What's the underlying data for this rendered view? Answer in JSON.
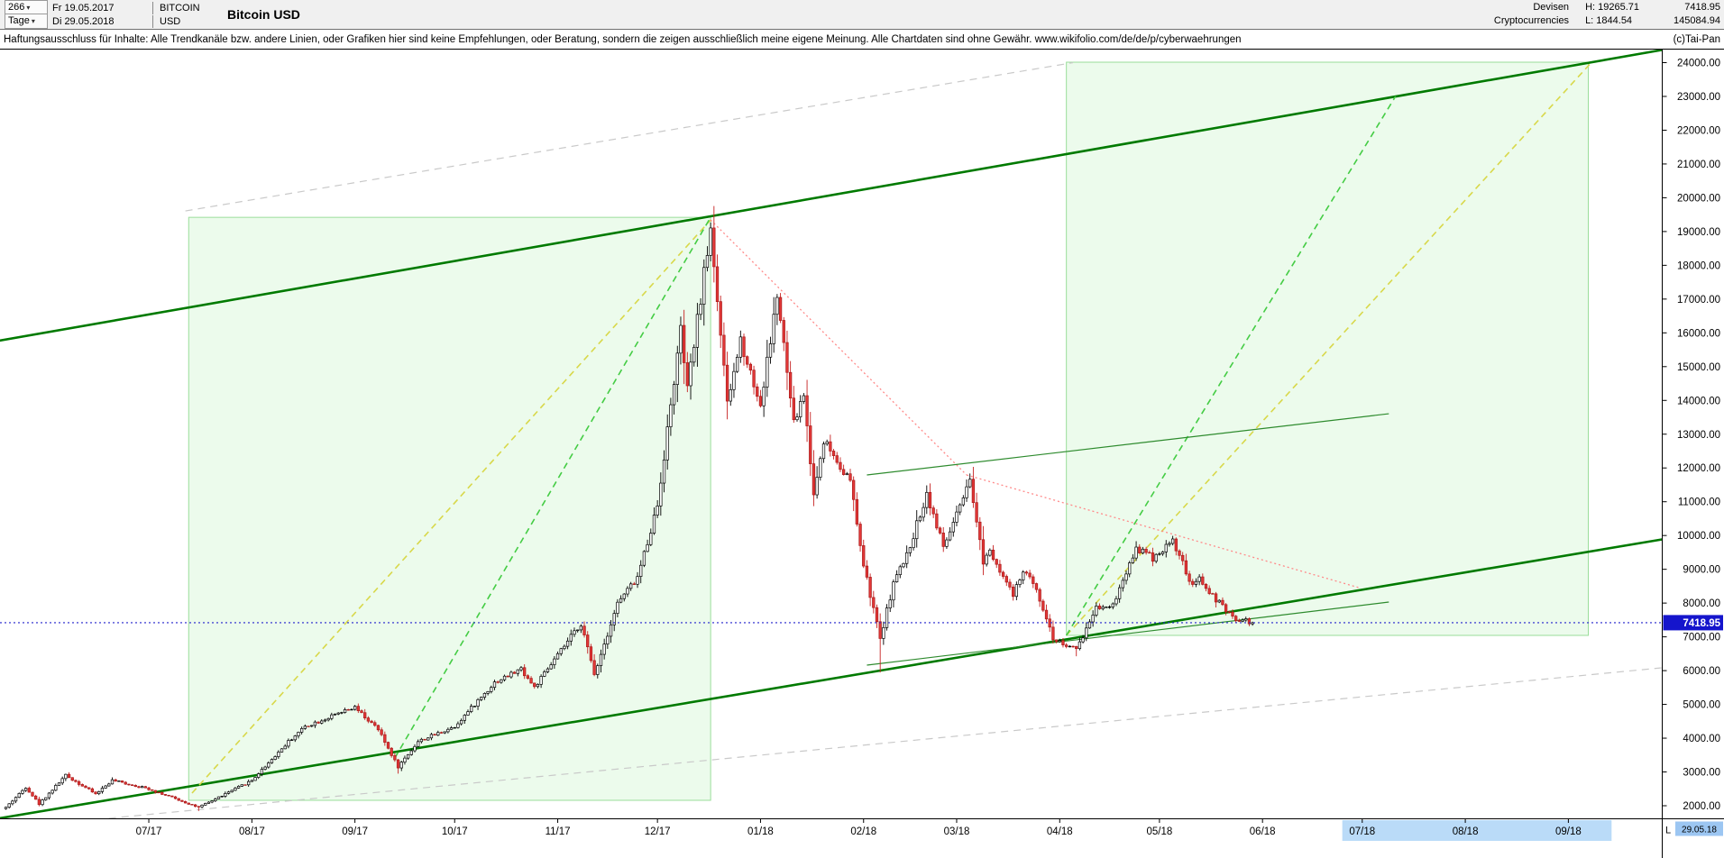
{
  "icons": {
    "dropdown_caret": "▾"
  },
  "window": {
    "bars": "266",
    "timeframe": "Tage",
    "date_from": "Fr 19.05.2017",
    "date_to": "Di 29.05.2018",
    "symbol": "BITCOIN",
    "currency": "USD",
    "title": "Bitcoin USD",
    "category_line1": "Devisen",
    "category_line2": "Cryptocurrencies",
    "high": "H: 19265.71",
    "low": "L: 1844.54",
    "last": "7418.95",
    "volume": "145084.94",
    "copyright": "(c)Tai-Pan"
  },
  "disclaimer": "Haftungsausschluss für Inhalte: Alle Trendkanäle bzw. andere Linien, oder Grafiken hier sind keine Empfehlungen, oder Beratung, sondern die zeigen ausschließlich meine eigene Meinung. Alle Chartdaten sind ohne Gewähr.  www.wikifolio.com/de/de/p/cyberwaehrungen",
  "chart_data": {
    "type": "candlestick",
    "title": "Bitcoin USD",
    "symbol": "BITCOIN",
    "currency": "USD",
    "timeframe": "Tage",
    "bars": 266,
    "range_start": "19.05.2017",
    "range_end": "29.05.2018",
    "period_high": 19265.71,
    "period_low": 1844.54,
    "last_close": 7418.95,
    "volume": 145084.94,
    "grid": false,
    "up_color": "#ffffff",
    "down_color": "#e33838",
    "y_axis": {
      "min": 2000,
      "max": 24000,
      "step": 1000,
      "side": "right",
      "label_format": "2-decimals"
    },
    "ylim": [
      2000,
      24000
    ],
    "x_labels": [
      {
        "label": "07/17",
        "day": 43
      },
      {
        "label": "08/17",
        "day": 74
      },
      {
        "label": "09/17",
        "day": 105
      },
      {
        "label": "10/17",
        "day": 135
      },
      {
        "label": "11/17",
        "day": 166
      },
      {
        "label": "12/17",
        "day": 196
      },
      {
        "label": "01/18",
        "day": 227
      },
      {
        "label": "02/18",
        "day": 258
      },
      {
        "label": "03/18",
        "day": 286
      },
      {
        "label": "04/18",
        "day": 317
      },
      {
        "label": "05/18",
        "day": 347
      },
      {
        "label": "06/18",
        "day": 378
      },
      {
        "label": "07/18",
        "day": 408
      },
      {
        "label": "08/18",
        "day": 439
      },
      {
        "label": "09/18",
        "day": 470
      }
    ],
    "price_path": [
      [
        0,
        1950
      ],
      [
        6,
        2550
      ],
      [
        10,
        2050
      ],
      [
        18,
        2900
      ],
      [
        27,
        2350
      ],
      [
        32,
        2750
      ],
      [
        43,
        2500
      ],
      [
        58,
        1950,
        null,
        1844.54
      ],
      [
        74,
        2750
      ],
      [
        85,
        3900
      ],
      [
        90,
        4350
      ],
      [
        105,
        4900
      ],
      [
        112,
        4250
      ],
      [
        118,
        3150,
        null,
        2950
      ],
      [
        124,
        3900
      ],
      [
        135,
        4350
      ],
      [
        147,
        5650
      ],
      [
        155,
        6050
      ],
      [
        159,
        5500
      ],
      [
        166,
        6450
      ],
      [
        173,
        7400
      ],
      [
        177,
        5900
      ],
      [
        184,
        8000
      ],
      [
        190,
        8750
      ],
      [
        196,
        10900
      ],
      [
        203,
        16050
      ],
      [
        205,
        14300
      ],
      [
        212,
        19100,
        19265.71,
        null
      ],
      [
        217,
        13850
      ],
      [
        221,
        15800
      ],
      [
        227,
        13850
      ],
      [
        232,
        17100
      ],
      [
        237,
        13300
      ],
      [
        240,
        14200
      ],
      [
        243,
        11200
      ],
      [
        246,
        12850
      ],
      [
        254,
        11600
      ],
      [
        258,
        9100
      ],
      [
        263,
        6950,
        null,
        5947
      ],
      [
        267,
        8600
      ],
      [
        271,
        9400
      ],
      [
        277,
        11250
      ],
      [
        282,
        9650
      ],
      [
        290,
        11550
      ],
      [
        294,
        9250
      ],
      [
        296,
        9600
      ],
      [
        303,
        8200
      ],
      [
        306,
        8950
      ],
      [
        310,
        8450
      ],
      [
        315,
        6950
      ],
      [
        322,
        6600,
        null,
        6425
      ],
      [
        328,
        7900
      ],
      [
        333,
        7950
      ],
      [
        340,
        9650
      ],
      [
        345,
        9350
      ],
      [
        351,
        9850,
        9990,
        null
      ],
      [
        357,
        8450
      ],
      [
        359,
        8700
      ],
      [
        364,
        8100
      ],
      [
        369,
        7550
      ],
      [
        375,
        7418.95
      ]
    ],
    "overlays": {
      "regions": [
        {
          "name": "rally-2017-zone",
          "d": [
            55,
            212
          ],
          "p": [
            2160,
            19420
          ],
          "fill": "rgba(150,235,150,0.18)",
          "border": "#9ade9a"
        },
        {
          "name": "projection-2018-zone",
          "d": [
            319,
            476
          ],
          "p": [
            7043,
            24013
          ],
          "fill": "rgba(150,235,150,0.18)",
          "border": "#9ade9a"
        }
      ],
      "lines": [
        {
          "name": "channel-upper-line",
          "pts": [
            [
              -2,
              15770
            ],
            [
              499,
              24390
            ]
          ],
          "color": "#007a00",
          "w": 2.6,
          "dash": ""
        },
        {
          "name": "channel-lower-line",
          "pts": [
            [
              -2,
              1627
            ],
            [
              499,
              9898
            ]
          ],
          "color": "#007a00",
          "w": 2.6,
          "dash": ""
        },
        {
          "name": "rally-yellow-dashed-line",
          "pts": [
            [
              56,
              2374
            ],
            [
              212,
              19342
            ]
          ],
          "color": "#d8d84a",
          "w": 1.6,
          "dash": "7,5"
        },
        {
          "name": "projection-yellow-dashed-line",
          "pts": [
            [
              319,
              7043
            ],
            [
              477,
              24013
            ]
          ],
          "color": "#d8d84a",
          "w": 1.6,
          "dash": "7,5"
        },
        {
          "name": "rally-green-dashed-line",
          "pts": [
            [
              117,
              3414
            ],
            [
              212,
              19422
            ]
          ],
          "color": "#44cc44",
          "w": 1.6,
          "dash": "7,5"
        },
        {
          "name": "projection-green-dashed-line",
          "pts": [
            [
              319,
              7043
            ],
            [
              418,
              22999
            ]
          ],
          "color": "#44cc44",
          "w": 1.6,
          "dash": "7,5"
        },
        {
          "name": "downtrend-red-dotted-line-1",
          "pts": [
            [
              212,
              19342
            ],
            [
              289,
              11792
            ]
          ],
          "color": "#ff8a8a",
          "w": 1.3,
          "dash": "2,3"
        },
        {
          "name": "downtrend-red-dotted-line-2",
          "pts": [
            [
              289,
              11792
            ],
            [
              407,
              8457
            ]
          ],
          "color": "#ff8a8a",
          "w": 1.3,
          "dash": "2,3"
        },
        {
          "name": "consolidation-upper-line",
          "pts": [
            [
              259,
              11792
            ],
            [
              416,
              13606
            ]
          ],
          "color": "#2e8b2e",
          "w": 1.2,
          "dash": ""
        },
        {
          "name": "consolidation-lower-line",
          "pts": [
            [
              259,
              6162
            ],
            [
              416,
              8030
            ]
          ],
          "color": "#2e8b2e",
          "w": 1.2,
          "dash": ""
        },
        {
          "name": "grey-dashed-lower-line",
          "pts": [
            [
              31,
              1627
            ],
            [
              498,
              6083
            ]
          ],
          "color": "#c9c9c9",
          "w": 1.2,
          "dash": "8,6"
        },
        {
          "name": "grey-dashed-upper-line",
          "pts": [
            [
              54,
              19609
            ],
            [
              321,
              24000
            ]
          ],
          "color": "#c9c9c9",
          "w": 1.2,
          "dash": "8,6"
        }
      ]
    },
    "last_price_line_color": "#2222cc",
    "last_price_tag_color": "#1515cc",
    "future_highlight": {
      "d": [
        402,
        483
      ],
      "color": "#badbf8"
    },
    "last_label_prefix": "L",
    "last_date_label": "29.05.18",
    "last_date_highlight_color": "#9cc6f2"
  }
}
